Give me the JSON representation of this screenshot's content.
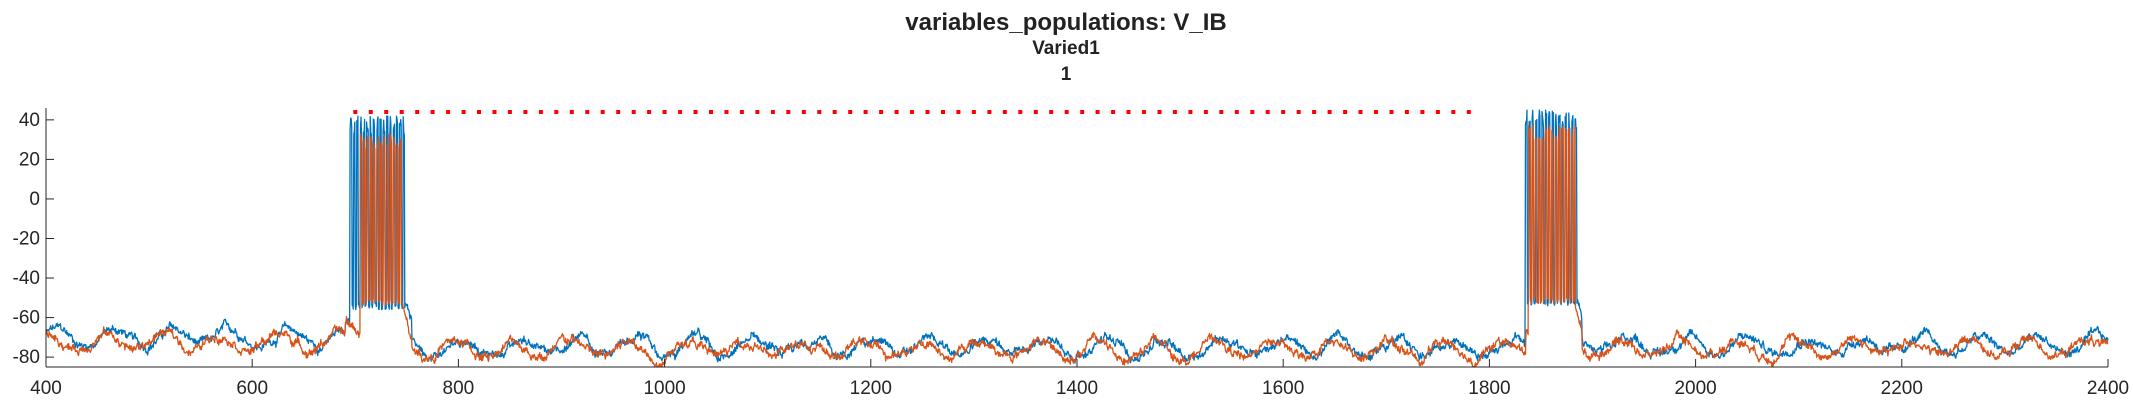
{
  "chart_data": {
    "type": "line",
    "title": "variables_populations: V_IB",
    "subtitle_lines": [
      "Varied1",
      "1"
    ],
    "xlabel": "",
    "ylabel": "",
    "xlim": [
      400,
      2400
    ],
    "ylim": [
      -85,
      46
    ],
    "x_ticks": [
      400,
      600,
      800,
      1000,
      1200,
      1400,
      1600,
      1800,
      2000,
      2200,
      2400
    ],
    "y_ticks": [
      -80,
      -60,
      -40,
      -20,
      0,
      20,
      40
    ],
    "grid": false,
    "legend": "none",
    "series": [
      {
        "color": "#0072BD",
        "baseline_segments": [
          {
            "x": [
              400,
              690
            ],
            "y": -70
          },
          {
            "x": [
              755,
              1835
            ],
            "y": -75
          },
          {
            "x": [
              1890,
              2400
            ],
            "y": -74
          }
        ],
        "bursts": [
          {
            "x_start": 695,
            "x_end": 748,
            "spike_peak": 42,
            "trough": -56
          },
          {
            "x_start": 1835,
            "x_end": 1885,
            "spike_peak": 45,
            "trough": -54
          }
        ]
      },
      {
        "color": "#D95319",
        "baseline_segments": [
          {
            "x": [
              400,
              690
            ],
            "y": -72
          },
          {
            "x": [
              755,
              1835
            ],
            "y": -76
          },
          {
            "x": [
              1890,
              2400
            ],
            "y": -75
          }
        ],
        "bursts": [
          {
            "x_start": 705,
            "x_end": 745,
            "spike_peak": 33,
            "trough": -54
          },
          {
            "x_start": 1838,
            "x_end": 1883,
            "spike_peak": 38,
            "trough": -53
          }
        ]
      }
    ],
    "marker_series": {
      "color": "#FF0000",
      "y": 44,
      "x_start": 700,
      "x_end": 1780,
      "step": 15
    }
  }
}
